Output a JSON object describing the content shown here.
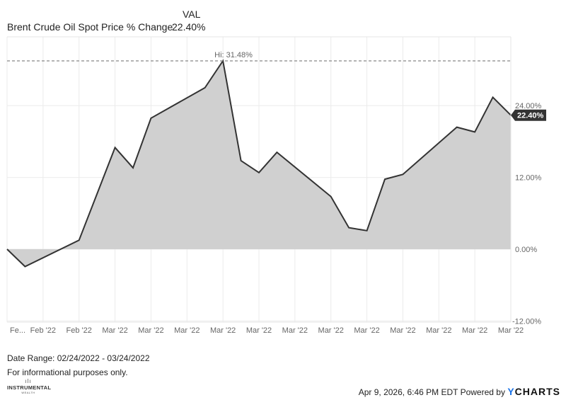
{
  "legend": {
    "column_header": "VAL",
    "series_name": "Brent Crude Oil Spot Price % Change",
    "series_value": "22.40%"
  },
  "chart_data": {
    "type": "area",
    "title": "Brent Crude Oil Spot Price % Change",
    "xlabel": "",
    "ylabel": "",
    "ylim": [
      -12,
      31.48
    ],
    "grid": true,
    "legend_position": "top-left",
    "y_ticks": [
      "24.00%",
      "12.00%",
      "0.00%",
      "-12.00%"
    ],
    "y_tick_values": [
      24,
      12,
      0,
      -12
    ],
    "x_tick_labels": [
      "Fe...",
      "Feb '22",
      "Feb '22",
      "Mar '22",
      "Mar '22",
      "Mar '22",
      "Mar '22",
      "Mar '22",
      "Mar '22",
      "Mar '22",
      "Mar '22",
      "Mar '22",
      "Mar '22",
      "Mar '22",
      "Mar '22"
    ],
    "series": [
      {
        "name": "Brent Crude Oil Spot Price % Change",
        "color": "#333333",
        "fill": "#d0d0d0",
        "x_index": [
          0,
          1,
          4,
          6,
          7,
          8,
          11,
          12,
          13,
          14,
          15,
          18,
          19,
          20,
          21,
          22,
          25,
          26,
          27,
          28
        ],
        "values": [
          0.0,
          -2.9,
          1.5,
          17.0,
          13.6,
          21.9,
          27.0,
          31.48,
          14.8,
          12.8,
          16.2,
          8.8,
          3.6,
          3.1,
          11.7,
          12.5,
          20.4,
          19.6,
          25.4,
          22.4
        ]
      }
    ],
    "annotations": [
      {
        "type": "high-line",
        "label": "Hi: 31.48%",
        "value": 31.48
      },
      {
        "type": "last-value-flag",
        "label": "22.40%",
        "value": 22.4
      }
    ],
    "date_range": "02/24/2022 - 03/24/2022"
  },
  "footer": {
    "date_range": "Date Range: 02/24/2022 - 03/24/2022",
    "disclaimer": "For informational purposes only.",
    "logo_marks": "ılı",
    "logo_name": "INSTRUMENTAL",
    "logo_sub": "WEALTH",
    "timestamp_powered": "Apr 9, 2026, 6:46 PM EDT Powered by",
    "brand_y": "Y",
    "brand_rest": "CHARTS"
  },
  "colors": {
    "line": "#333333",
    "area_fill": "#d0d0d0",
    "grid": "#ebebeb",
    "flag_bg": "#333333",
    "flag_text": "#ffffff",
    "brand_accent": "#1a73e8"
  }
}
